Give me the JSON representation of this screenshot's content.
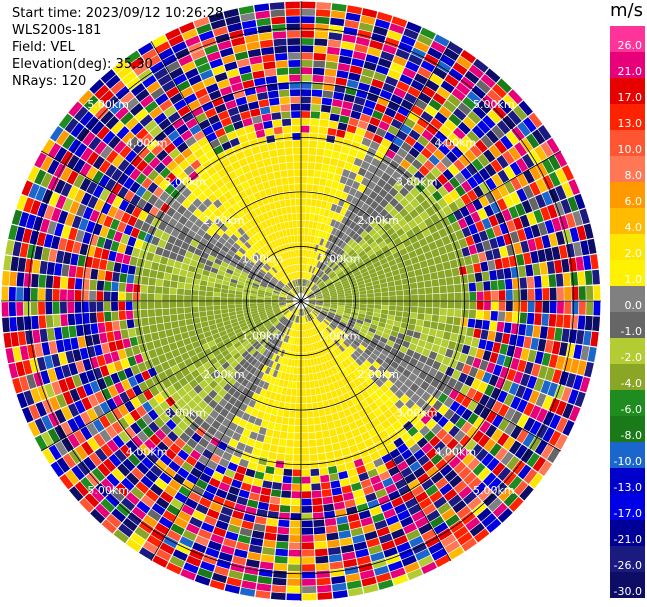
{
  "header": {
    "start_time": "Start time: 2023/09/12 10:26:28",
    "site": "WLS200s-181",
    "field": "Field: VEL",
    "elevation": "Elevation(deg): 35.30",
    "nrays": "NRays: 120"
  },
  "colorbar": {
    "unit": "m/s",
    "ticks": [
      "26.0",
      "21.0",
      "17.0",
      "13.0",
      "10.0",
      "8.0",
      "6.0",
      "4.0",
      "2.0",
      "1.0",
      "0.0",
      "-1.0",
      "-2.0",
      "-4.0",
      "-6.0",
      "-8.0",
      "-10.0",
      "-13.0",
      "-17.0",
      "-21.0",
      "-26.0",
      "-30.0"
    ],
    "colors": [
      "#ff3399",
      "#e8007a",
      "#e60000",
      "#ff2200",
      "#ff5533",
      "#ff7755",
      "#ff9900",
      "#ffbb00",
      "#ffe600",
      "#fff200",
      "#808080",
      "#666666",
      "#b3cc33",
      "#8aa626",
      "#1f8c1f",
      "#1a7a1a",
      "#1a66cc",
      "#0000cc",
      "#0000e6",
      "#000099",
      "#1a1a80",
      "#0d0d66"
    ]
  },
  "chart_data": {
    "type": "heatmap",
    "title": "Start time: 2023/09/12 10:26:28",
    "subtitle": "WLS200s-181",
    "field": "VEL",
    "elevation_deg": 35.3,
    "n_rays": 120,
    "projection": "polar (PPI)",
    "range_rings_km": [
      "1.00km",
      "2.00km",
      "3.00km",
      "4.00km",
      "5.00km"
    ],
    "range_ring_values": [
      1,
      2,
      3,
      4,
      5
    ],
    "azimuth_spokes_deg": [
      0,
      30,
      60,
      90,
      120,
      150,
      180,
      210,
      240,
      270,
      300,
      330
    ],
    "colorbar_range": [
      -30.0,
      26.0
    ],
    "colorbar_unit": "m/s",
    "pattern": "dipole: positive (yellow) velocities on west and east lobes near center, negative (green) to south and northeast; noisy random velocities beyond ~3.5 km"
  }
}
